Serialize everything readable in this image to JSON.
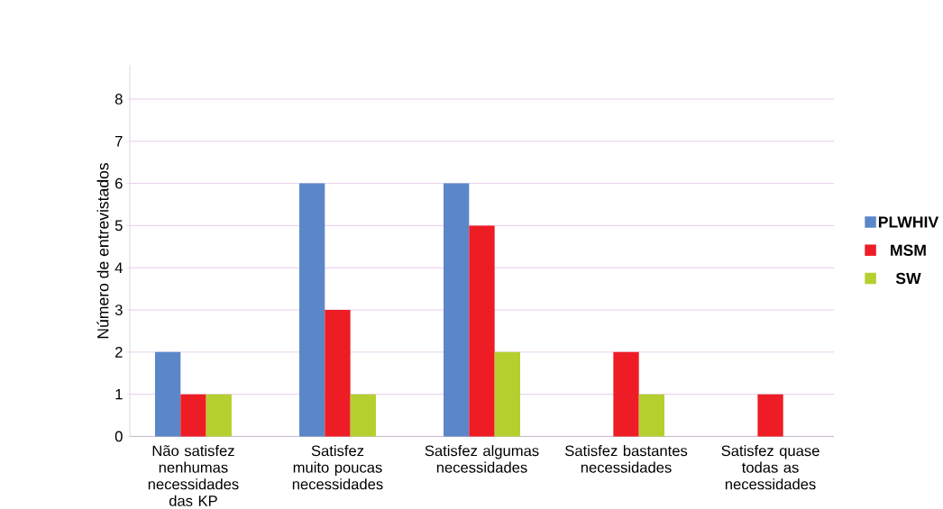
{
  "chart_data": {
    "type": "bar",
    "ylabel": "Número de entrevistados",
    "categories": [
      "Não satisfez nenhumas necessidades das KP",
      "Satisfez muito poucas necessidades",
      "Satisfez algumas necessidades",
      "Satisfez bastantes necessidades",
      "Satisfez quase todas as necessidades"
    ],
    "series": [
      {
        "name": "PLWHIV",
        "color": "#5b87c8",
        "values": [
          2,
          6,
          6,
          0,
          0
        ]
      },
      {
        "name": "MSM",
        "color": "#ee1c25",
        "values": [
          1,
          3,
          5,
          2,
          1
        ]
      },
      {
        "name": "SW",
        "color": "#b5cf2f",
        "values": [
          1,
          1,
          2,
          1,
          0
        ]
      }
    ],
    "ylim": [
      0,
      8.8
    ],
    "yticks": [
      0,
      1,
      2,
      3,
      4,
      5,
      6,
      7,
      8
    ],
    "grid": "y",
    "legend": "right"
  }
}
